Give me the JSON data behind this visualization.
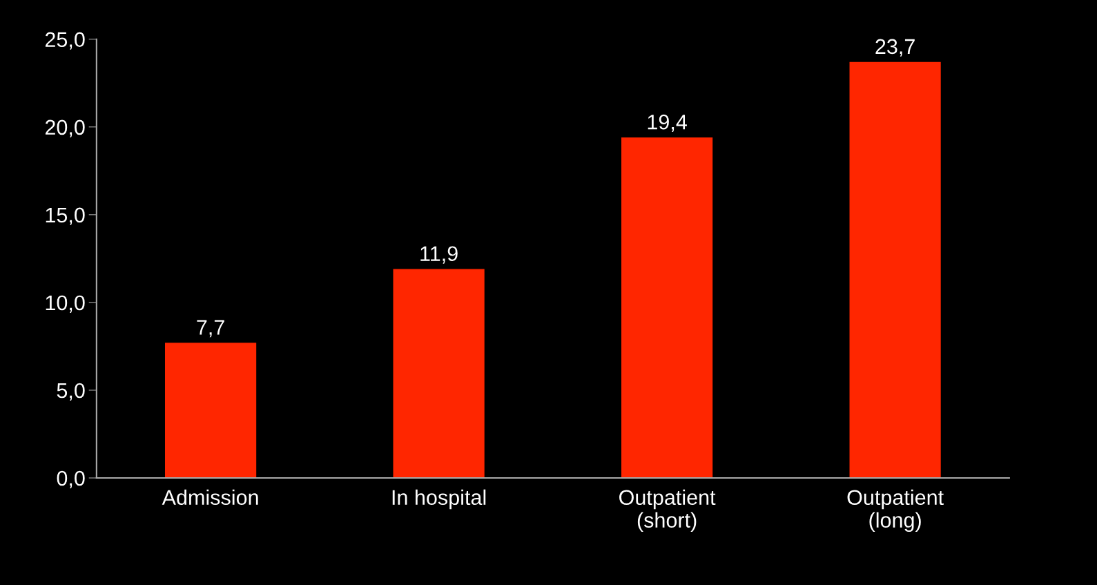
{
  "chart_data": {
    "type": "bar",
    "categories": [
      "Admission",
      "In hospital",
      "Outpatient\n(short)",
      "Outpatient\n(long)"
    ],
    "values": [
      7.7,
      11.9,
      19.4,
      23.7
    ],
    "value_labels": [
      "7,7",
      "11,9",
      "19,4",
      "23,7"
    ],
    "color": "#ff2600",
    "ylim": [
      0,
      25
    ],
    "yticks": [
      {
        "value": 0,
        "label": "0,0"
      },
      {
        "value": 5,
        "label": "5,0"
      },
      {
        "value": 10,
        "label": "10,0"
      },
      {
        "value": 15,
        "label": "15,0"
      },
      {
        "value": 20,
        "label": "20,0"
      },
      {
        "value": 25,
        "label": "25,0"
      }
    ],
    "grid": false,
    "legend": false
  }
}
